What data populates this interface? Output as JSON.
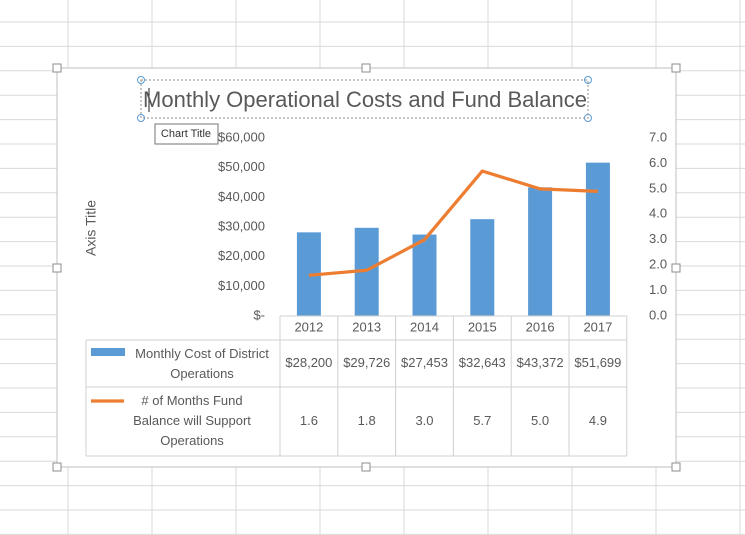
{
  "chart_data": {
    "type": "bar-line",
    "title": "Monthly Operational Costs and Fund Balance",
    "tooltip": "Chart Title",
    "y_axis_title": "Axis Title",
    "categories": [
      "2012",
      "2013",
      "2014",
      "2015",
      "2016",
      "2017"
    ],
    "series": [
      {
        "name": "Monthly Cost of District Operations",
        "type": "bar",
        "color": "#5b9bd5",
        "values": [
          28200,
          29726,
          27453,
          32643,
          43372,
          51699
        ],
        "value_labels": [
          "$28,200",
          "$29,726",
          "$27,453",
          "$32,643",
          "$43,372",
          "$51,699"
        ]
      },
      {
        "name": "# of Months Fund Balance will Support Operations",
        "type": "line",
        "axis": "y2",
        "color": "#ed7d31",
        "values": [
          1.6,
          1.8,
          3.0,
          5.7,
          5.0,
          4.9
        ],
        "value_labels": [
          "1.6",
          "1.8",
          "3.0",
          "5.7",
          "5.0",
          "4.9"
        ]
      }
    ],
    "ylim": [
      0,
      60000
    ],
    "yticks": [
      {
        "value": 0,
        "label": "$-"
      },
      {
        "value": 10000,
        "label": "$10,000"
      },
      {
        "value": 20000,
        "label": "$20,000"
      },
      {
        "value": 30000,
        "label": "$30,000"
      },
      {
        "value": 40000,
        "label": "$40,000"
      },
      {
        "value": 50000,
        "label": "$50,000"
      },
      {
        "value": 60000,
        "label": "$60,000"
      }
    ],
    "y2lim": [
      0,
      7
    ],
    "y2ticks": [
      {
        "value": 0,
        "label": "0.0"
      },
      {
        "value": 1,
        "label": "1.0"
      },
      {
        "value": 2,
        "label": "2.0"
      },
      {
        "value": 3,
        "label": "3.0"
      },
      {
        "value": 4,
        "label": "4.0"
      },
      {
        "value": 5,
        "label": "5.0"
      },
      {
        "value": 6,
        "label": "6.0"
      },
      {
        "value": 7,
        "label": "7.0"
      }
    ],
    "data_table": true
  }
}
